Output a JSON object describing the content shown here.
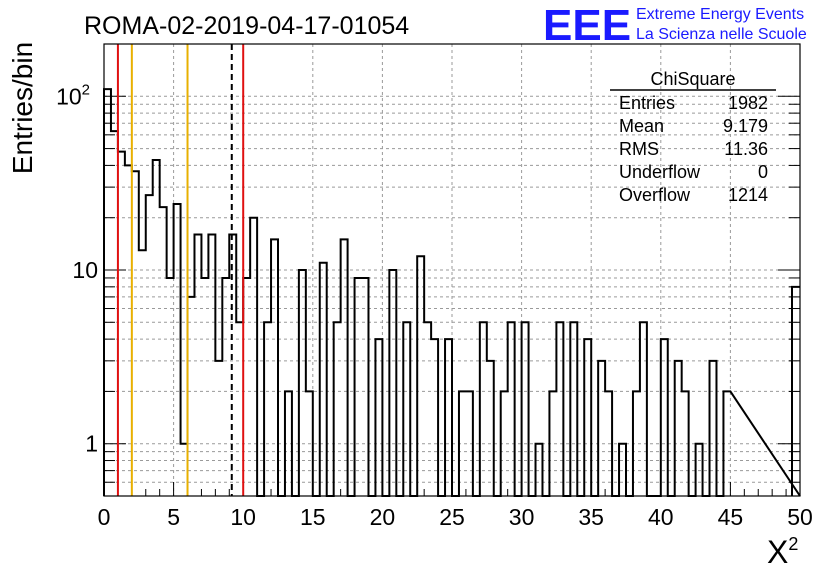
{
  "title": "ROMA-02-2019-04-17-01054",
  "logo": {
    "mark": "EEE",
    "line1": "Extreme Energy Events",
    "line2": "La Scienza nelle Scuole",
    "color": "#1a1aff"
  },
  "stats": {
    "header": "ChiSquare",
    "rows": [
      {
        "label": "Entries",
        "value": "1982"
      },
      {
        "label": "Mean",
        "value": "9.179"
      },
      {
        "label": "RMS",
        "value": "11.36"
      },
      {
        "label": "Underflow",
        "value": "0"
      },
      {
        "label": "Overflow",
        "value": "1214"
      }
    ]
  },
  "chart_data": {
    "type": "bar",
    "style": "step-histogram",
    "xlabel_base": "X",
    "xlabel_sup": "2",
    "ylabel": "Entries/bin",
    "xlim": [
      0,
      50
    ],
    "ylim": [
      0.5,
      200
    ],
    "yscale": "log",
    "grid": true,
    "bin_width": 0.5,
    "xticks": [
      0,
      5,
      10,
      15,
      20,
      25,
      30,
      35,
      40,
      45,
      50
    ],
    "yticks": [
      {
        "value": 1,
        "base": "1",
        "exp": ""
      },
      {
        "value": 10,
        "base": "10",
        "exp": ""
      },
      {
        "value": 100,
        "base": "10",
        "exp": "2"
      }
    ],
    "values": [
      110,
      63,
      48,
      40,
      37,
      13,
      27,
      43,
      23,
      9,
      24,
      1,
      7,
      16,
      9,
      16,
      3,
      9,
      16,
      5,
      9,
      20,
      0,
      5,
      15,
      0,
      2,
      0,
      10,
      2,
      0,
      11,
      0,
      5,
      15,
      0,
      9,
      9,
      0,
      4,
      0,
      10,
      0,
      5,
      0,
      12,
      5,
      4,
      0,
      4,
      0,
      2,
      2,
      0,
      5,
      3,
      0,
      2,
      5,
      0,
      5,
      0,
      1,
      0,
      2,
      5,
      0,
      5,
      0,
      4,
      0,
      3,
      2,
      0,
      1,
      0,
      2,
      5,
      0,
      0,
      4,
      0,
      3,
      2,
      0,
      1,
      0,
      3,
      0,
      2
    ],
    "value_at_50": 8,
    "color": "#000000",
    "vlines": [
      {
        "x": 1,
        "color": "#e01010",
        "style": "solid"
      },
      {
        "x": 2,
        "color": "#e8b000",
        "style": "solid"
      },
      {
        "x": 6,
        "color": "#e8b000",
        "style": "solid"
      },
      {
        "x": 9.179,
        "color": "#000000",
        "style": "dashed"
      },
      {
        "x": 10,
        "color": "#e01010",
        "style": "solid"
      }
    ]
  }
}
